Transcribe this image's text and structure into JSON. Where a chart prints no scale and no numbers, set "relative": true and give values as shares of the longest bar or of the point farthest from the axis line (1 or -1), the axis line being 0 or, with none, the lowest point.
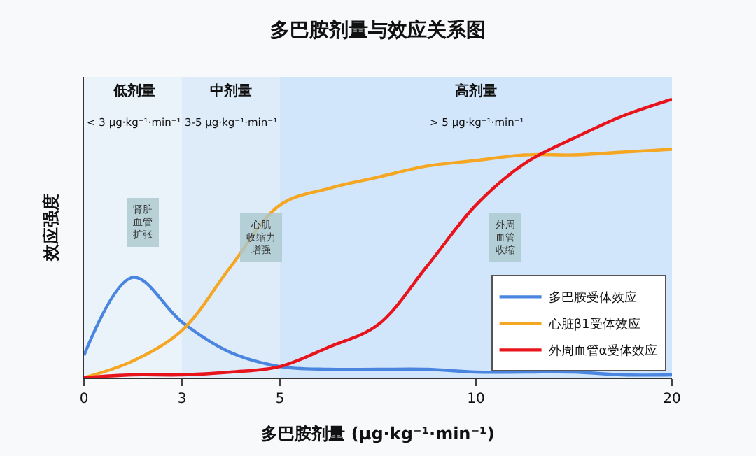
{
  "chart_data": {
    "type": "line",
    "title": "多巴胺剂量与效应关系图",
    "xlabel": "多巴胺剂量 (μg·kg⁻¹·min⁻¹)",
    "ylabel": "效应强度",
    "categories": [
      "0",
      null,
      "3",
      null,
      "5",
      null,
      null,
      null,
      "10",
      null,
      null,
      null,
      "20"
    ],
    "relative": true,
    "grid": false,
    "legend": "bottom right",
    "marker": "none",
    "line_style": "solid",
    "tick_labels": "x",
    "series": [
      {
        "name": "多巴胺受体效应",
        "color": "#4a86e0",
        "values": [
          0.08,
          0.36,
          0.2,
          0.09,
          0.04,
          0.03,
          0.03,
          0.03,
          0.02,
          0.02,
          0.02,
          0.01,
          0.01
        ]
      },
      {
        "name": "心脏β1受体效应",
        "color": "#f5a623",
        "values": [
          0,
          0.06,
          0.17,
          0.4,
          0.62,
          0.68,
          0.72,
          0.76,
          0.78,
          0.8,
          0.8,
          0.81,
          0.82
        ]
      },
      {
        "name": "外周血管α受体效应",
        "color": "#e8141c",
        "values": [
          0,
          0.01,
          0.01,
          0.02,
          0.04,
          0.11,
          0.19,
          0.4,
          0.62,
          0.77,
          0.86,
          0.94,
          1
        ]
      }
    ],
    "bands": [
      {
        "axis": "x",
        "from": "0",
        "to": "3",
        "label": "低剂量\n< 3 μg·kg⁻¹·min⁻¹",
        "color": "#eaf2fa"
      },
      {
        "axis": "x",
        "from": "3",
        "to": "5",
        "label": "中剂量\n3-5 μg·kg⁻¹·min⁻¹",
        "color": "#deebf8"
      },
      {
        "axis": "x",
        "from": "5",
        "to": "20",
        "label": "高剂量\n> 5 μg·kg⁻¹·min⁻¹",
        "color": "#d2e6fb"
      }
    ],
    "annotations": [
      "肾脏血管扩张",
      "心肌收缩力增强",
      "外周血管收缩"
    ]
  }
}
